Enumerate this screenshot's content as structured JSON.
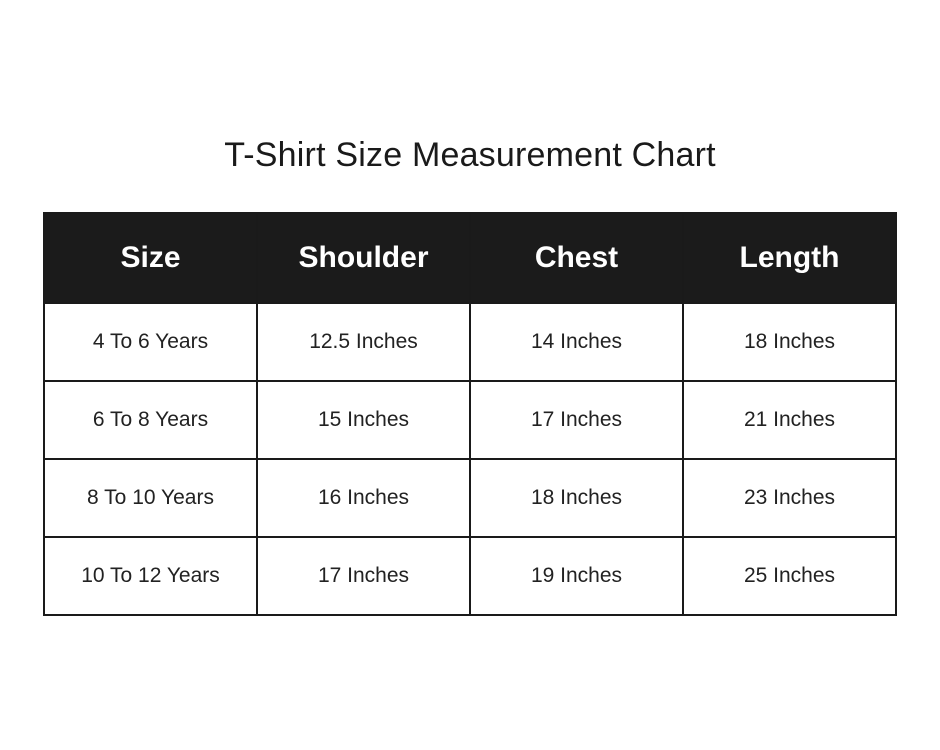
{
  "title": "T-Shirt Size Measurement Chart",
  "colors": {
    "header_bg": "#1b1b1b",
    "header_text": "#ffffff",
    "border": "#1a1a1a"
  },
  "chart_data": {
    "type": "table",
    "title": "T-Shirt Size Measurement Chart",
    "columns": [
      "Size",
      "Shoulder",
      "Chest",
      "Length"
    ],
    "rows": [
      [
        "4 To 6 Years",
        "12.5 Inches",
        "14 Inches",
        "18 Inches"
      ],
      [
        "6 To 8 Years",
        "15 Inches",
        "17 Inches",
        "21 Inches"
      ],
      [
        "8 To 10 Years",
        "16 Inches",
        "18 Inches",
        "23 Inches"
      ],
      [
        "10 To 12 Years",
        "17 Inches",
        "19 Inches",
        "25 Inches"
      ]
    ]
  }
}
